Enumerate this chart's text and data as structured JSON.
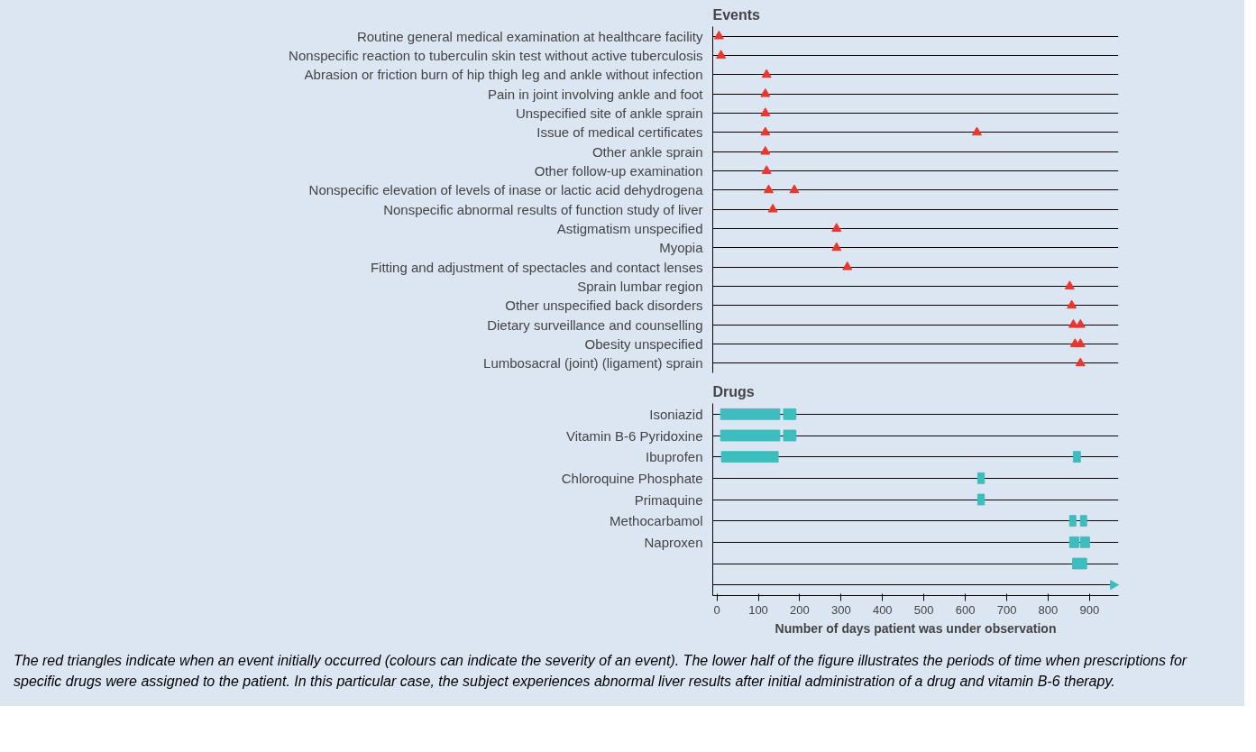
{
  "chart_data": [
    {
      "type": "scatter",
      "title": "Events",
      "orientation": "horizontal",
      "marker": "triangle",
      "grid": "y",
      "tick_labels": "y",
      "xlim": [
        -10,
        970
      ],
      "categories": [
        "Routine general medical examination at healthcare facility",
        "Nonspecific reaction to tuberculin skin test without active tuberculosis",
        "Abrasion or friction burn of hip thigh leg and ankle without infection",
        "Pain in joint involving ankle and foot",
        "Unspecified site of ankle sprain",
        "Issue of medical certificates",
        "Other ankle sprain",
        "Other follow-up examination",
        "Nonspecific elevation of levels of inase or lactic acid dehydrogena",
        "Nonspecific abnormal results of function study of liver",
        "Astigmatism unspecified",
        "Myopia",
        "Fitting and adjustment of spectacles and contact lenses",
        "Sprain lumbar region",
        "Other unspecified back disorders",
        "Dietary surveillance and counselling",
        "Obesity unspecified",
        "Lumbosacral (joint) (ligament) sprain"
      ],
      "series": [
        {
          "color": "#e8372c",
          "values": [
            5,
            10,
            120,
            117,
            117,
            117,
            117,
            120,
            125,
            135,
            289,
            289,
            315,
            852,
            857,
            861,
            865,
            878
          ]
        },
        {
          "color": "#e8372c",
          "values": [
            null,
            null,
            null,
            null,
            null,
            628,
            null,
            null,
            187,
            null,
            null,
            null,
            null,
            null,
            null,
            878,
            878,
            null
          ]
        }
      ]
    },
    {
      "type": "bar",
      "title": "Drugs",
      "orientation": "horizontal",
      "marker": "triangle",
      "grid": "y",
      "xlim": [
        -10,
        970
      ],
      "xticks": [
        0,
        100,
        200,
        300,
        400,
        500,
        600,
        700,
        800,
        900
      ],
      "xlabel": "Number of days patient was under observation",
      "categories": [
        "Isoniazid",
        "Vitamin B-6 Pyridoxine",
        "Ibuprofen",
        "Chloroquine Phosphate",
        "Primaquine",
        "Methocarbamol",
        "Naproxen",
        null,
        null
      ],
      "series": [
        {
          "color": "#3dbdbd",
          "base": [
            9,
            9,
            11,
            630,
            630,
            852,
            852,
            859,
            null
          ],
          "values": [
            143,
            143,
            137,
            16,
            16,
            15,
            22,
            34,
            null
          ]
        },
        {
          "color": "#3dbdbd",
          "base": [
            161,
            161,
            861,
            null,
            null,
            878,
            878,
            null,
            null
          ],
          "values": [
            30,
            30,
            17,
            null,
            null,
            15,
            22,
            null,
            null
          ]
        },
        {
          "type": "scatter",
          "color": "#3dbdbd",
          "values": [
            null,
            null,
            null,
            null,
            null,
            null,
            null,
            null,
            957
          ]
        }
      ],
      "annotations": [
        "The red triangles indicate when an event initially occurred (colours can indicate the severity of an event). The lower half of the figure illustrates the periods of time when prescriptions for specific drugs were assigned to the patient. In this particular case, the subject experiences abnormal liver results after initial administration of a drug and vitamin B-6 therapy."
      ]
    }
  ]
}
